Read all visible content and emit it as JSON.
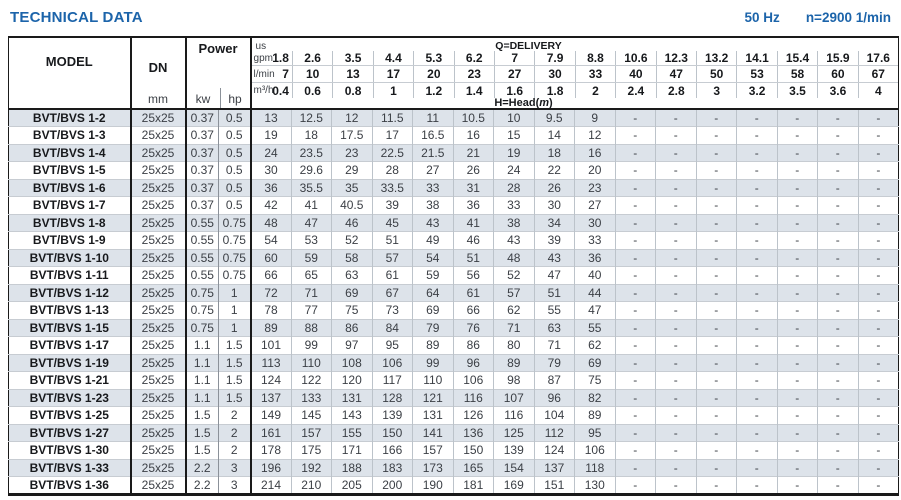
{
  "page": {
    "title": "TECHNICAL DATA",
    "frequency": "50 Hz",
    "speed": "n=2900 1/min"
  },
  "colors": {
    "accent_blue": "#1c64aa",
    "row_stripe": "#dde3ea",
    "border_dark": "#1a1a1a"
  },
  "table": {
    "model_header": "MODEL",
    "dn_header": "DN",
    "dn_unit": "mm",
    "power_header": "Power",
    "kw_unit": "kw",
    "hp_unit": "hp",
    "us_label": "us",
    "delivery_label": "Q=DELIVERY",
    "head_label_prefix": "H=Head(",
    "head_label_m": "m",
    "head_label_suffix": ")",
    "unit_rows": [
      {
        "label": "gpm",
        "values": [
          "1.8",
          "2.6",
          "3.5",
          "4.4",
          "5.3",
          "6.2",
          "7",
          "7.9",
          "8.8",
          "10.6",
          "12.3",
          "13.2",
          "14.1",
          "15.4",
          "15.9",
          "17.6"
        ]
      },
      {
        "label": "l/min",
        "values": [
          "7",
          "10",
          "13",
          "17",
          "20",
          "23",
          "27",
          "30",
          "33",
          "40",
          "47",
          "50",
          "53",
          "58",
          "60",
          "67"
        ]
      },
      {
        "label": "m³/h",
        "values": [
          "0.4",
          "0.6",
          "0.8",
          "1",
          "1.2",
          "1.4",
          "1.6",
          "1.8",
          "2",
          "2.4",
          "2.8",
          "3",
          "3.2",
          "3.5",
          "3.6",
          "4"
        ]
      }
    ],
    "rows": [
      {
        "model": "BVT/BVS 1-2",
        "dn": "25x25",
        "kw": "0.37",
        "hp": "0.5",
        "head": [
          "13",
          "12.5",
          "12",
          "11.5",
          "11",
          "10.5",
          "10",
          "9.5",
          "9",
          "-",
          "-",
          "-",
          "-",
          "-",
          "-",
          "-"
        ]
      },
      {
        "model": "BVT/BVS 1-3",
        "dn": "25x25",
        "kw": "0.37",
        "hp": "0.5",
        "head": [
          "19",
          "18",
          "17.5",
          "17",
          "16.5",
          "16",
          "15",
          "14",
          "12",
          "-",
          "-",
          "-",
          "-",
          "-",
          "-",
          "-"
        ]
      },
      {
        "model": "BVT/BVS 1-4",
        "dn": "25x25",
        "kw": "0.37",
        "hp": "0.5",
        "head": [
          "24",
          "23.5",
          "23",
          "22.5",
          "21.5",
          "21",
          "19",
          "18",
          "16",
          "-",
          "-",
          "-",
          "-",
          "-",
          "-",
          "-"
        ]
      },
      {
        "model": "BVT/BVS 1-5",
        "dn": "25x25",
        "kw": "0.37",
        "hp": "0.5",
        "head": [
          "30",
          "29.6",
          "29",
          "28",
          "27",
          "26",
          "24",
          "22",
          "20",
          "-",
          "-",
          "-",
          "-",
          "-",
          "-",
          "-"
        ]
      },
      {
        "model": "BVT/BVS 1-6",
        "dn": "25x25",
        "kw": "0.37",
        "hp": "0.5",
        "head": [
          "36",
          "35.5",
          "35",
          "33.5",
          "33",
          "31",
          "28",
          "26",
          "23",
          "-",
          "-",
          "-",
          "-",
          "-",
          "-",
          "-"
        ]
      },
      {
        "model": "BVT/BVS 1-7",
        "dn": "25x25",
        "kw": "0.37",
        "hp": "0.5",
        "head": [
          "42",
          "41",
          "40.5",
          "39",
          "38",
          "36",
          "33",
          "30",
          "27",
          "-",
          "-",
          "-",
          "-",
          "-",
          "-",
          "-"
        ]
      },
      {
        "model": "BVT/BVS 1-8",
        "dn": "25x25",
        "kw": "0.55",
        "hp": "0.75",
        "head": [
          "48",
          "47",
          "46",
          "45",
          "43",
          "41",
          "38",
          "34",
          "30",
          "-",
          "-",
          "-",
          "-",
          "-",
          "-",
          "-"
        ]
      },
      {
        "model": "BVT/BVS 1-9",
        "dn": "25x25",
        "kw": "0.55",
        "hp": "0.75",
        "head": [
          "54",
          "53",
          "52",
          "51",
          "49",
          "46",
          "43",
          "39",
          "33",
          "-",
          "-",
          "-",
          "-",
          "-",
          "-",
          "-"
        ]
      },
      {
        "model": "BVT/BVS 1-10",
        "dn": "25x25",
        "kw": "0.55",
        "hp": "0.75",
        "head": [
          "60",
          "59",
          "58",
          "57",
          "54",
          "51",
          "48",
          "43",
          "36",
          "-",
          "-",
          "-",
          "-",
          "-",
          "-",
          "-"
        ]
      },
      {
        "model": "BVT/BVS 1-11",
        "dn": "25x25",
        "kw": "0.55",
        "hp": "0.75",
        "head": [
          "66",
          "65",
          "63",
          "61",
          "59",
          "56",
          "52",
          "47",
          "40",
          "-",
          "-",
          "-",
          "-",
          "-",
          "-",
          "-"
        ]
      },
      {
        "model": "BVT/BVS 1-12",
        "dn": "25x25",
        "kw": "0.75",
        "hp": "1",
        "head": [
          "72",
          "71",
          "69",
          "67",
          "64",
          "61",
          "57",
          "51",
          "44",
          "-",
          "-",
          "-",
          "-",
          "-",
          "-",
          "-"
        ]
      },
      {
        "model": "BVT/BVS 1-13",
        "dn": "25x25",
        "kw": "0.75",
        "hp": "1",
        "head": [
          "78",
          "77",
          "75",
          "73",
          "69",
          "66",
          "62",
          "55",
          "47",
          "-",
          "-",
          "-",
          "-",
          "-",
          "-",
          "-"
        ]
      },
      {
        "model": "BVT/BVS 1-15",
        "dn": "25x25",
        "kw": "0.75",
        "hp": "1",
        "head": [
          "89",
          "88",
          "86",
          "84",
          "79",
          "76",
          "71",
          "63",
          "55",
          "-",
          "-",
          "-",
          "-",
          "-",
          "-",
          "-"
        ]
      },
      {
        "model": "BVT/BVS 1-17",
        "dn": "25x25",
        "kw": "1.1",
        "hp": "1.5",
        "head": [
          "101",
          "99",
          "97",
          "95",
          "89",
          "86",
          "80",
          "71",
          "62",
          "-",
          "-",
          "-",
          "-",
          "-",
          "-",
          "-"
        ]
      },
      {
        "model": "BVT/BVS 1-19",
        "dn": "25x25",
        "kw": "1.1",
        "hp": "1.5",
        "head": [
          "113",
          "110",
          "108",
          "106",
          "99",
          "96",
          "89",
          "79",
          "69",
          "-",
          "-",
          "-",
          "-",
          "-",
          "-",
          "-"
        ]
      },
      {
        "model": "BVT/BVS 1-21",
        "dn": "25x25",
        "kw": "1.1",
        "hp": "1.5",
        "head": [
          "124",
          "122",
          "120",
          "117",
          "110",
          "106",
          "98",
          "87",
          "75",
          "-",
          "-",
          "-",
          "-",
          "-",
          "-",
          "-"
        ]
      },
      {
        "model": "BVT/BVS 1-23",
        "dn": "25x25",
        "kw": "1.1",
        "hp": "1.5",
        "head": [
          "137",
          "133",
          "131",
          "128",
          "121",
          "116",
          "107",
          "96",
          "82",
          "-",
          "-",
          "-",
          "-",
          "-",
          "-",
          "-"
        ]
      },
      {
        "model": "BVT/BVS 1-25",
        "dn": "25x25",
        "kw": "1.5",
        "hp": "2",
        "head": [
          "149",
          "145",
          "143",
          "139",
          "131",
          "126",
          "116",
          "104",
          "89",
          "-",
          "-",
          "-",
          "-",
          "-",
          "-",
          "-"
        ]
      },
      {
        "model": "BVT/BVS 1-27",
        "dn": "25x25",
        "kw": "1.5",
        "hp": "2",
        "head": [
          "161",
          "157",
          "155",
          "150",
          "141",
          "136",
          "125",
          "112",
          "95",
          "-",
          "-",
          "-",
          "-",
          "-",
          "-",
          "-"
        ]
      },
      {
        "model": "BVT/BVS 1-30",
        "dn": "25x25",
        "kw": "1.5",
        "hp": "2",
        "head": [
          "178",
          "175",
          "171",
          "166",
          "157",
          "150",
          "139",
          "124",
          "106",
          "-",
          "-",
          "-",
          "-",
          "-",
          "-",
          "-"
        ]
      },
      {
        "model": "BVT/BVS 1-33",
        "dn": "25x25",
        "kw": "2.2",
        "hp": "3",
        "head": [
          "196",
          "192",
          "188",
          "183",
          "173",
          "165",
          "154",
          "137",
          "118",
          "-",
          "-",
          "-",
          "-",
          "-",
          "-",
          "-"
        ]
      },
      {
        "model": "BVT/BVS 1-36",
        "dn": "25x25",
        "kw": "2.2",
        "hp": "3",
        "head": [
          "214",
          "210",
          "205",
          "200",
          "190",
          "181",
          "169",
          "151",
          "130",
          "-",
          "-",
          "-",
          "-",
          "-",
          "-",
          "-"
        ]
      }
    ]
  }
}
